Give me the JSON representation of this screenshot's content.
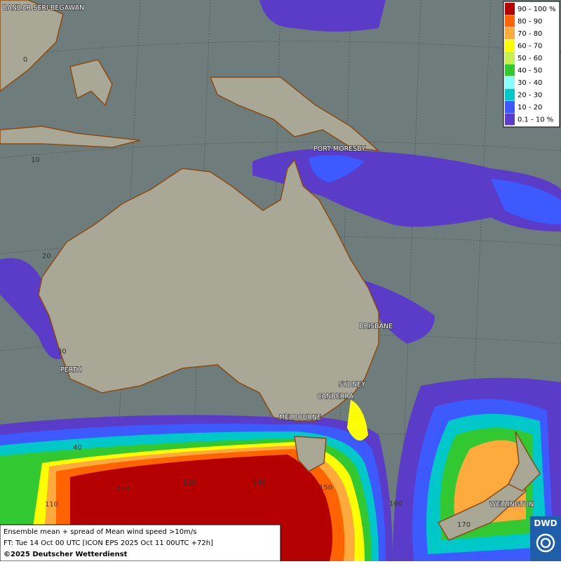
{
  "map": {
    "places": [
      "BANDAR SERI BEGAWAN",
      "PORT MORESBY",
      "BRISBANE",
      "PERTH",
      "SYDNEY",
      "CANBERRA",
      "MELBOURNE",
      "WELLINGTON"
    ],
    "grid_labels": [
      "0",
      "10",
      "20",
      "30",
      "40",
      "110",
      "120",
      "130",
      "140",
      "150",
      "160",
      "170"
    ],
    "legend": [
      {
        "label": "90 - 100 %",
        "color": "#b40000"
      },
      {
        "label": "80 - 90",
        "color": "#ff6400"
      },
      {
        "label": "70 - 80",
        "color": "#ffaa3c"
      },
      {
        "label": "60 - 70",
        "color": "#ffff00"
      },
      {
        "label": "50 - 60",
        "color": "#c8f050"
      },
      {
        "label": "40 - 50",
        "color": "#32c832"
      },
      {
        "label": "30 - 40",
        "color": "#8cffff"
      },
      {
        "label": "20 - 30",
        "color": "#00c8c8"
      },
      {
        "label": "10 - 20",
        "color": "#3c5aff"
      },
      {
        "label": "0.1 - 10 %",
        "color": "#5a3cc8"
      }
    ],
    "footer": [
      "Ensemble mean + spread of Mean wind speed >10m/s",
      "FT: Tue 14 Oct 00 UTC [ICON EPS 2025 Oct 11 00UTC +72h]",
      "©2025 Deutscher Wetterdienst"
    ],
    "logo": "DWD"
  }
}
